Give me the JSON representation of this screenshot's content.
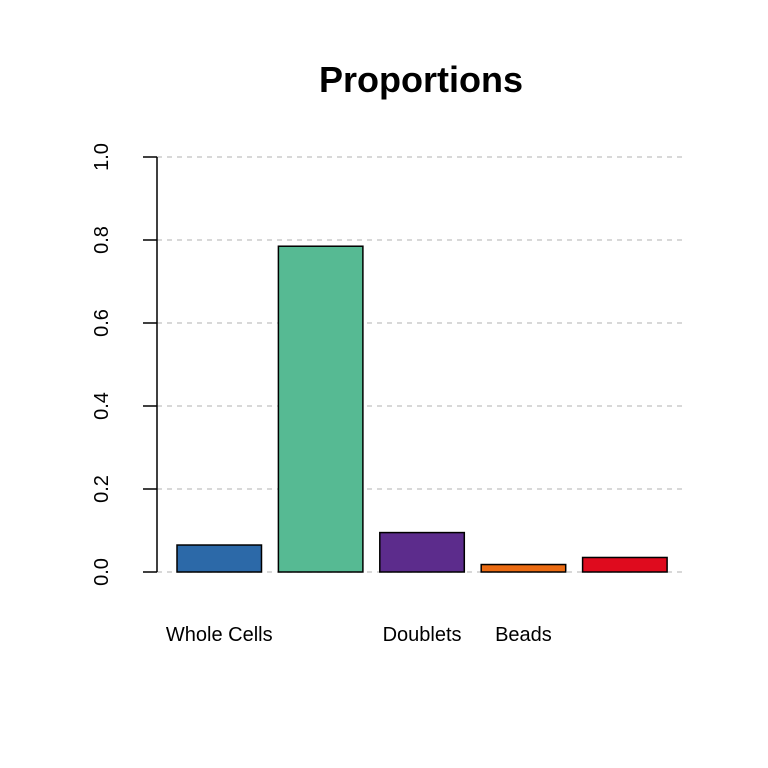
{
  "chart_data": {
    "type": "bar",
    "title": "Proportions",
    "xlabel": "",
    "ylabel": "",
    "ylim": [
      0,
      1
    ],
    "yticks": [
      "0.0",
      "0.2",
      "0.4",
      "0.6",
      "0.8",
      "1.0"
    ],
    "grid": "horizontal dashed",
    "categories": [
      "Whole Cells",
      "",
      "Doublets",
      "Beads",
      ""
    ],
    "values": [
      0.065,
      0.785,
      0.095,
      0.018,
      0.035
    ],
    "colors": [
      "#2c69a8",
      "#56ba93",
      "#5c2c8c",
      "#eb6b12",
      "#df0b1e"
    ]
  }
}
